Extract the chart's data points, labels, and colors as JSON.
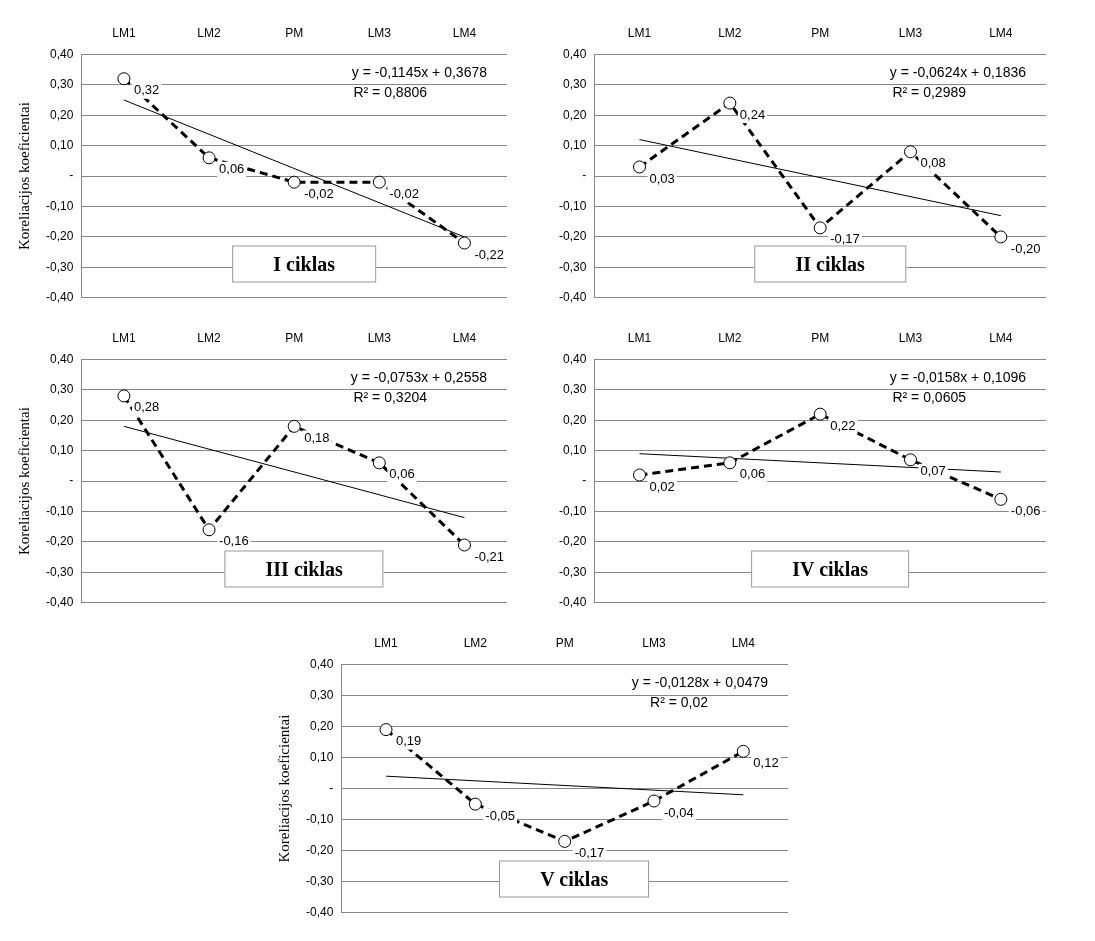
{
  "chart_data": [
    {
      "type": "line",
      "title": "I ciklas",
      "ylabel": "Koreliacijos koeficientai",
      "categories": [
        "LM1",
        "LM2",
        "PM",
        "LM3",
        "LM4"
      ],
      "ylim": [
        -0.4,
        0.4
      ],
      "yticks": [
        {
          "value": -0.4,
          "label": "-0,40"
        },
        {
          "value": -0.3,
          "label": "-0,30"
        },
        {
          "value": -0.2,
          "label": "-0,20"
        },
        {
          "value": -0.1,
          "label": "-0,10"
        },
        {
          "value": 0,
          "label": "-"
        },
        {
          "value": 0.1,
          "label": "0,10"
        },
        {
          "value": 0.2,
          "label": "0,20"
        },
        {
          "value": 0.3,
          "label": "0,30"
        },
        {
          "value": 0.4,
          "label": "0,40"
        }
      ],
      "grid": "y",
      "annotations": [
        "y = -0,1145x + 0,3678",
        "R² = 0,8806"
      ],
      "series": [
        {
          "type": "line",
          "color": "#000000",
          "line_style": "dashed",
          "marker": "circle",
          "values": [
            0.32,
            0.06,
            -0.02,
            -0.02,
            -0.22
          ],
          "value_labels": [
            "0,32",
            "0,06",
            "-0,02",
            "-0,02",
            "-0,22"
          ]
        },
        {
          "type": "line",
          "color": "#000000",
          "line_style": "solid",
          "marker": "none",
          "x": [
            "LM1",
            "LM4"
          ],
          "values": [
            0.25,
            -0.2
          ]
        }
      ]
    },
    {
      "type": "line",
      "title": "II ciklas",
      "categories": [
        "LM1",
        "LM2",
        "PM",
        "LM3",
        "LM4"
      ],
      "ylim": [
        -0.4,
        0.4
      ],
      "yticks": [
        {
          "value": -0.4,
          "label": "-0,40"
        },
        {
          "value": -0.3,
          "label": "-0,30"
        },
        {
          "value": -0.2,
          "label": "-0,20"
        },
        {
          "value": -0.1,
          "label": "-0,10"
        },
        {
          "value": 0,
          "label": "-"
        },
        {
          "value": 0.1,
          "label": "0,10"
        },
        {
          "value": 0.2,
          "label": "0,20"
        },
        {
          "value": 0.3,
          "label": "0,30"
        },
        {
          "value": 0.4,
          "label": "0,40"
        }
      ],
      "grid": "y",
      "annotations": [
        "y = -0,0624x + 0,1836",
        "R² = 0,2989"
      ],
      "series": [
        {
          "type": "line",
          "color": "#000000",
          "line_style": "dashed",
          "marker": "circle",
          "values": [
            0.03,
            0.24,
            -0.17,
            0.08,
            -0.2
          ],
          "value_labels": [
            "0,03",
            "0,24",
            "-0,17",
            "0,08",
            "-0,20"
          ]
        },
        {
          "type": "line",
          "color": "#000000",
          "line_style": "solid",
          "marker": "none",
          "x": [
            "LM1",
            "LM4"
          ],
          "values": [
            0.12,
            -0.13
          ]
        }
      ]
    },
    {
      "type": "line",
      "title": "III ciklas",
      "ylabel": "Koreliacijos koeficientai",
      "categories": [
        "LM1",
        "LM2",
        "PM",
        "LM3",
        "LM4"
      ],
      "ylim": [
        -0.4,
        0.4
      ],
      "yticks": [
        {
          "value": -0.4,
          "label": "-0,40"
        },
        {
          "value": -0.3,
          "label": "-0,30"
        },
        {
          "value": -0.2,
          "label": "-0,20"
        },
        {
          "value": -0.1,
          "label": "-0,10"
        },
        {
          "value": 0,
          "label": "-"
        },
        {
          "value": 0.1,
          "label": "0,10"
        },
        {
          "value": 0.2,
          "label": "0,20"
        },
        {
          "value": 0.3,
          "label": "0,30"
        },
        {
          "value": 0.4,
          "label": "0,40"
        }
      ],
      "grid": "y",
      "annotations": [
        "y = -0,0753x + 0,2558",
        "R² = 0,3204"
      ],
      "series": [
        {
          "type": "line",
          "color": "#000000",
          "line_style": "dashed",
          "marker": "circle",
          "values": [
            0.28,
            -0.16,
            0.18,
            0.06,
            -0.21
          ],
          "value_labels": [
            "0,28",
            "-0,16",
            "0,18",
            "0,06",
            "-0,21"
          ]
        },
        {
          "type": "line",
          "color": "#000000",
          "line_style": "solid",
          "marker": "none",
          "x": [
            "LM1",
            "LM4"
          ],
          "values": [
            0.18,
            -0.12
          ]
        }
      ]
    },
    {
      "type": "line",
      "title": "IV ciklas",
      "categories": [
        "LM1",
        "LM2",
        "PM",
        "LM3",
        "LM4"
      ],
      "ylim": [
        -0.4,
        0.4
      ],
      "yticks": [
        {
          "value": -0.4,
          "label": "-0,40"
        },
        {
          "value": -0.3,
          "label": "-0,30"
        },
        {
          "value": -0.2,
          "label": "-0,20"
        },
        {
          "value": -0.1,
          "label": "-0,10"
        },
        {
          "value": 0,
          "label": "-"
        },
        {
          "value": 0.1,
          "label": "0,10"
        },
        {
          "value": 0.2,
          "label": "0,20"
        },
        {
          "value": 0.3,
          "label": "0,30"
        },
        {
          "value": 0.4,
          "label": "0,40"
        }
      ],
      "grid": "y",
      "annotations": [
        "y = -0,0158x + 0,1096",
        "R² = 0,0605"
      ],
      "series": [
        {
          "type": "line",
          "color": "#000000",
          "line_style": "dashed",
          "marker": "circle",
          "values": [
            0.02,
            0.06,
            0.22,
            0.07,
            -0.06
          ],
          "value_labels": [
            "0,02",
            "0,06",
            "0,22",
            "0,07",
            "-0,06"
          ]
        },
        {
          "type": "line",
          "color": "#000000",
          "line_style": "solid",
          "marker": "none",
          "x": [
            "LM1",
            "LM4"
          ],
          "values": [
            0.09,
            0.03
          ]
        }
      ]
    },
    {
      "type": "line",
      "title": "V ciklas",
      "ylabel": "Koreliacijos koeficientai",
      "categories": [
        "LM1",
        "LM2",
        "PM",
        "LM3",
        "LM4"
      ],
      "ylim": [
        -0.4,
        0.4
      ],
      "yticks": [
        {
          "value": -0.4,
          "label": "-0,40"
        },
        {
          "value": -0.3,
          "label": "-0,30"
        },
        {
          "value": -0.2,
          "label": "-0,20"
        },
        {
          "value": -0.1,
          "label": "-0,10"
        },
        {
          "value": 0,
          "label": "-"
        },
        {
          "value": 0.1,
          "label": "0,10"
        },
        {
          "value": 0.2,
          "label": "0,20"
        },
        {
          "value": 0.3,
          "label": "0,30"
        },
        {
          "value": 0.4,
          "label": "0,40"
        }
      ],
      "grid": "y",
      "annotations": [
        "y = -0,0128x + 0,0479",
        "R² = 0,02"
      ],
      "series": [
        {
          "type": "line",
          "color": "#000000",
          "line_style": "dashed",
          "marker": "circle",
          "values": [
            0.19,
            -0.05,
            -0.17,
            -0.04,
            0.12
          ],
          "value_labels": [
            "0,19",
            "-0,05",
            "-0,17",
            "-0,04",
            "0,12"
          ]
        },
        {
          "type": "line",
          "color": "#000000",
          "line_style": "solid",
          "marker": "none",
          "x": [
            "LM1",
            "LM4"
          ],
          "values": [
            0.04,
            -0.02
          ]
        }
      ]
    }
  ]
}
